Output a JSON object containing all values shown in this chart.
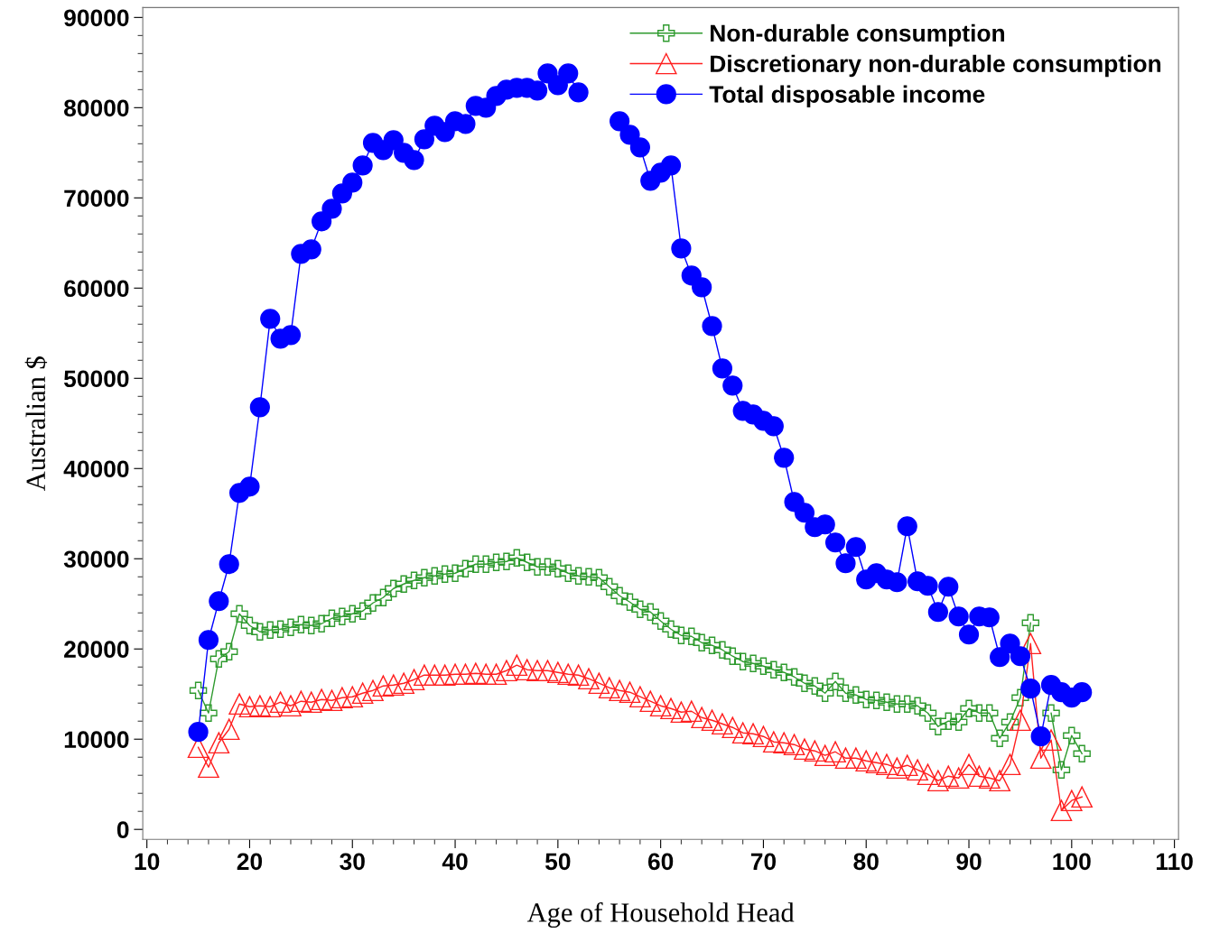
{
  "chart_data": {
    "type": "line",
    "xlabel": "Age of Household Head",
    "ylabel": "Australian $",
    "x": [
      15,
      16,
      17,
      18,
      19,
      20,
      21,
      22,
      23,
      24,
      25,
      26,
      27,
      28,
      29,
      30,
      31,
      32,
      33,
      34,
      35,
      36,
      37,
      38,
      39,
      40,
      41,
      42,
      43,
      44,
      45,
      46,
      47,
      48,
      49,
      50,
      51,
      52,
      53,
      54,
      55,
      56,
      57,
      58,
      59,
      60,
      61,
      62,
      63,
      64,
      65,
      66,
      67,
      68,
      69,
      70,
      71,
      72,
      73,
      74,
      75,
      76,
      77,
      78,
      79,
      80,
      81,
      82,
      83,
      84,
      85,
      86,
      87,
      88,
      89,
      90,
      91,
      92,
      93,
      94,
      95,
      96,
      97,
      98,
      99,
      100,
      101
    ],
    "series": [
      {
        "name": "Non-durable consumption",
        "color": "#2e9a2e",
        "marker": "cross",
        "values": [
          15400,
          12900,
          18900,
          19700,
          23900,
          22600,
          21900,
          22100,
          22200,
          22400,
          22700,
          22600,
          22800,
          23400,
          23600,
          23900,
          24200,
          25100,
          25700,
          26700,
          27200,
          27600,
          27900,
          28100,
          28300,
          28400,
          28900,
          29400,
          29400,
          29600,
          29700,
          30100,
          29600,
          29100,
          29100,
          28900,
          28400,
          28100,
          28000,
          27900,
          26900,
          25900,
          25200,
          24400,
          24100,
          23100,
          22200,
          21500,
          21400,
          20700,
          20400,
          19900,
          19200,
          18600,
          18400,
          18100,
          17700,
          17400,
          16900,
          16200,
          15900,
          15100,
          16400,
          15100,
          14900,
          14400,
          14300,
          14100,
          13900,
          13900,
          13700,
          12900,
          11400,
          12000,
          11900,
          13400,
          12900,
          12900,
          10100,
          11900,
          14600,
          22900,
          null,
          12900,
          6600,
          10400,
          8400
        ]
      },
      {
        "name": "Discretionary non-durable consumption",
        "color": "#ff2020",
        "marker": "triangle",
        "values": [
          9100,
          6900,
          9600,
          11100,
          13900,
          13600,
          13700,
          13600,
          14100,
          13700,
          14200,
          14100,
          14400,
          14300,
          14600,
          14700,
          15100,
          15400,
          15900,
          16000,
          16200,
          16600,
          17100,
          17100,
          17100,
          17200,
          17200,
          17300,
          17200,
          17200,
          17600,
          18200,
          17700,
          17600,
          17600,
          17400,
          17200,
          17100,
          16700,
          16200,
          15700,
          15400,
          15200,
          14700,
          14200,
          13700,
          13400,
          13000,
          13100,
          12400,
          12100,
          11700,
          11300,
          10700,
          10600,
          10300,
          9700,
          9600,
          9400,
          8900,
          8700,
          8200,
          8600,
          7900,
          7900,
          7600,
          7400,
          7200,
          6800,
          7100,
          6600,
          6100,
          5400,
          5900,
          5700,
          7200,
          5900,
          5700,
          5400,
          7200,
          12100,
          20600,
          7900,
          9900,
          2100,
          3200,
          3600
        ]
      },
      {
        "name": "Total disposable income",
        "color": "#0000ff",
        "marker": "circle",
        "values": [
          10800,
          21000,
          25300,
          29400,
          37300,
          38000,
          46800,
          56600,
          54400,
          54800,
          63800,
          64300,
          67400,
          68800,
          70500,
          71700,
          73600,
          76100,
          75300,
          76400,
          75000,
          74200,
          76500,
          78000,
          77300,
          78500,
          78200,
          80200,
          80000,
          81300,
          82000,
          82200,
          82200,
          81900,
          83800,
          82500,
          83800,
          81700,
          null,
          null,
          null,
          78500,
          77000,
          75600,
          71900,
          72800,
          73600,
          64400,
          61400,
          60100,
          55800,
          51100,
          49200,
          46400,
          46000,
          45300,
          44700,
          41200,
          36300,
          35100,
          33500,
          33800,
          31800,
          29500,
          31300,
          27700,
          28400,
          27700,
          27400,
          33600,
          27500,
          27000,
          24100,
          26900,
          23600,
          21600,
          23600,
          23500,
          19100,
          20600,
          19200,
          15600,
          10300,
          16000,
          15200,
          14600,
          15200
        ]
      }
    ],
    "xlim": [
      9.6,
      110.4
    ],
    "xticks": [
      10,
      20,
      30,
      40,
      50,
      60,
      70,
      80,
      90,
      100,
      110
    ],
    "ylim": [
      -1100,
      91100
    ],
    "yticks": [
      0,
      10000,
      20000,
      30000,
      40000,
      50000,
      60000,
      70000,
      80000,
      90000
    ],
    "grid": false,
    "legend": "top right",
    "line_style": "solid"
  }
}
